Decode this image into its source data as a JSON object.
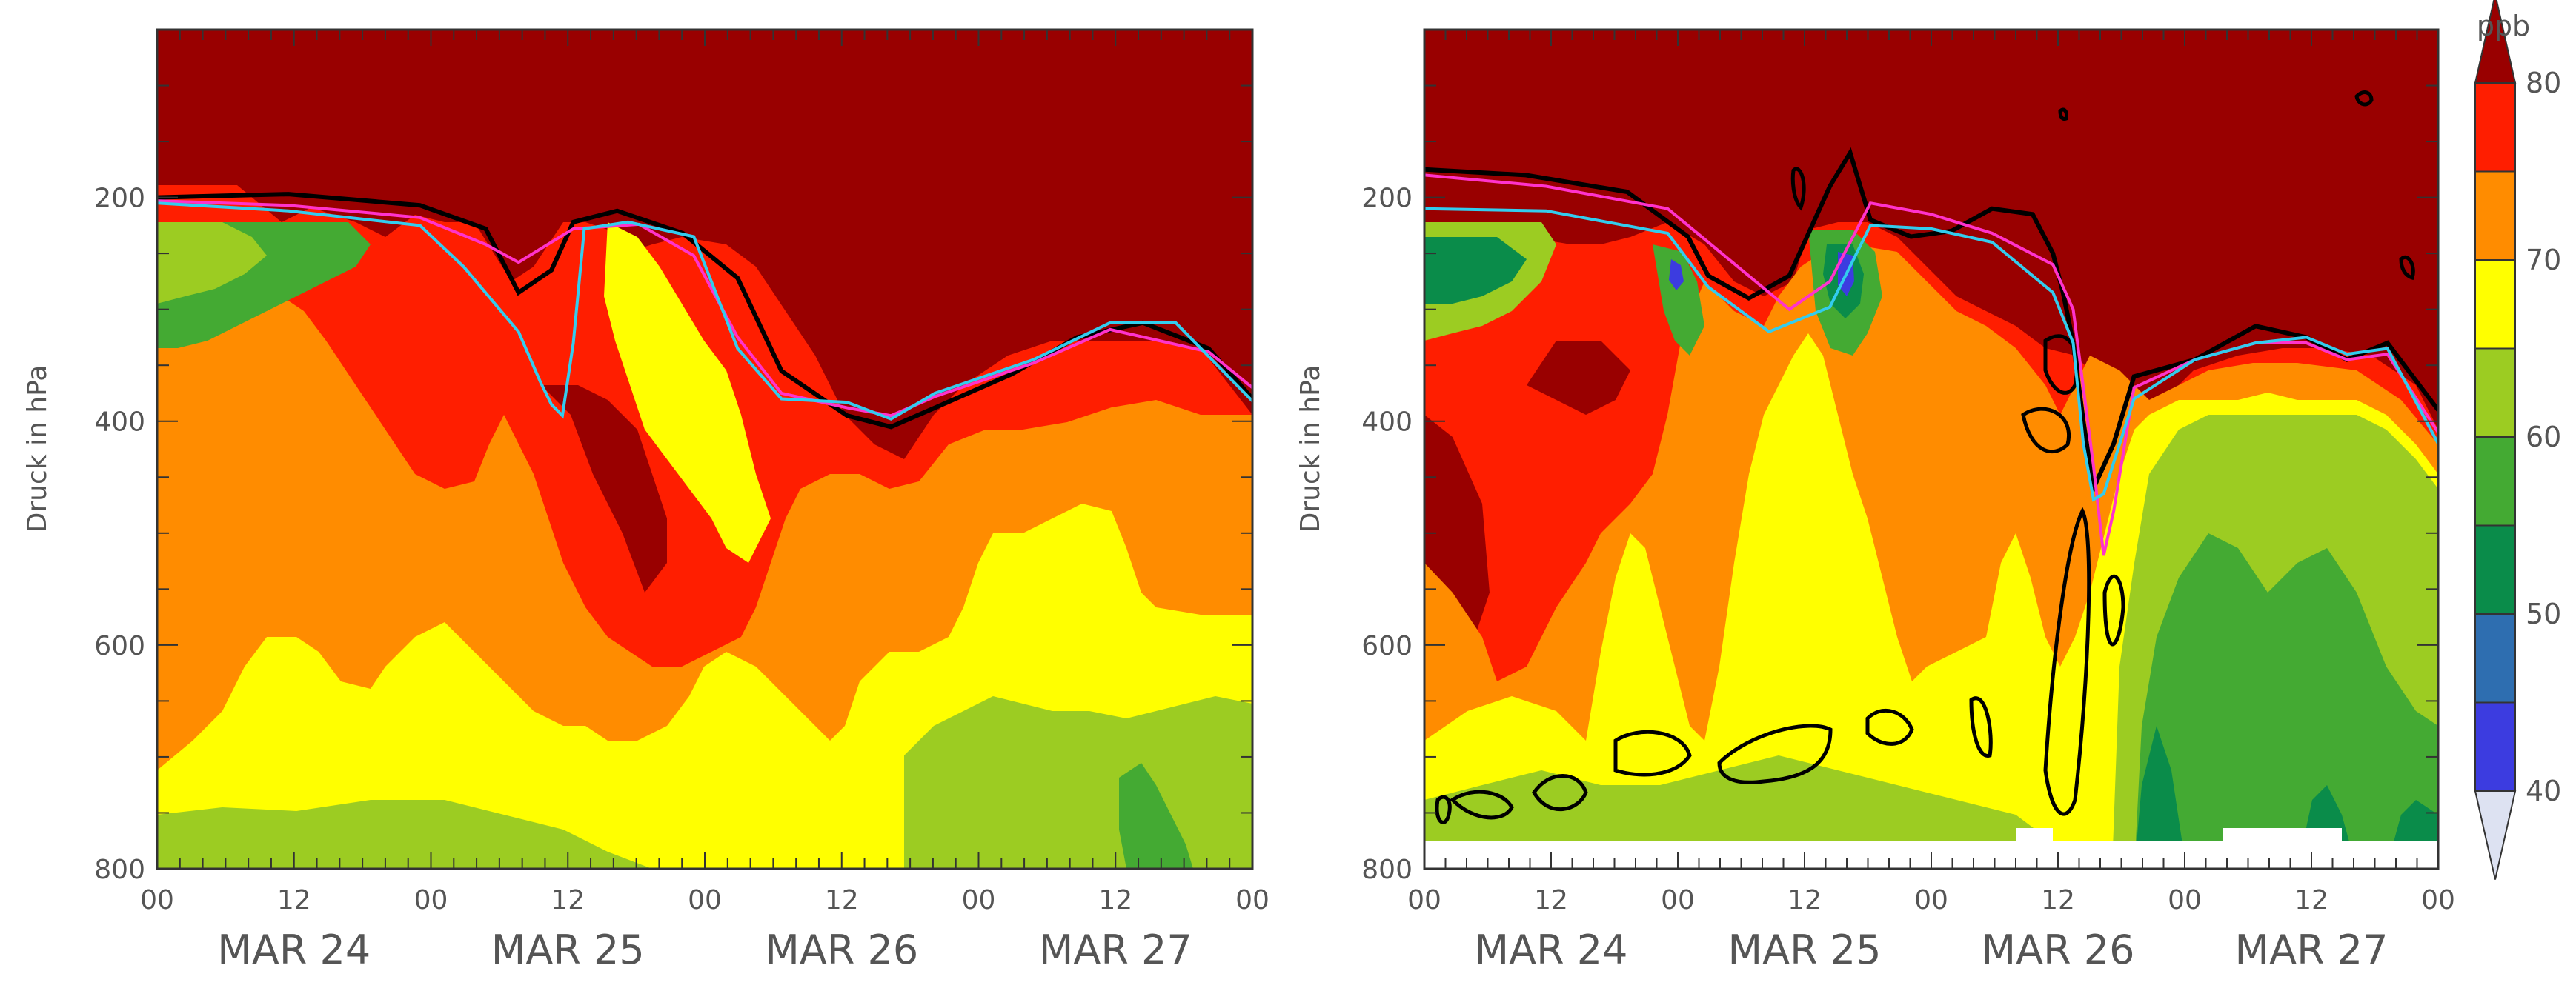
{
  "chart_data": [
    {
      "type": "heatmap",
      "title": "",
      "xlabel": "",
      "ylabel": "Druck in hPa",
      "ylim": [
        800,
        50
      ],
      "y_ticks": [
        "200",
        "400",
        "600",
        "800"
      ],
      "x_ticks": [
        "00",
        "12",
        "00",
        "12",
        "00",
        "12",
        "00",
        "12",
        "00"
      ],
      "x_days": [
        "MAR 24",
        "MAR 25",
        "MAR 26",
        "MAR 27"
      ],
      "tropopause_black": [
        [
          0,
          200
        ],
        [
          12,
          197
        ],
        [
          24,
          207
        ],
        [
          30,
          228
        ],
        [
          33,
          285
        ],
        [
          36,
          265
        ],
        [
          38,
          222
        ],
        [
          42,
          212
        ],
        [
          48,
          232
        ],
        [
          53,
          272
        ],
        [
          57,
          355
        ],
        [
          63,
          395
        ],
        [
          67,
          405
        ],
        [
          71,
          388
        ],
        [
          78,
          358
        ],
        [
          84,
          325
        ],
        [
          90,
          312
        ],
        [
          96,
          335
        ],
        [
          100,
          380
        ]
      ],
      "tropopause_magenta": [
        [
          0,
          203
        ],
        [
          12,
          207
        ],
        [
          24,
          218
        ],
        [
          30,
          242
        ],
        [
          33,
          258
        ],
        [
          38,
          228
        ],
        [
          44,
          224
        ],
        [
          49,
          252
        ],
        [
          53,
          325
        ],
        [
          57,
          375
        ],
        [
          63,
          388
        ],
        [
          67,
          395
        ],
        [
          71,
          378
        ],
        [
          80,
          348
        ],
        [
          87,
          318
        ],
        [
          96,
          338
        ],
        [
          100,
          370
        ]
      ],
      "tropopause_cyan": [
        [
          0,
          205
        ],
        [
          12,
          212
        ],
        [
          24,
          225
        ],
        [
          28,
          262
        ],
        [
          33,
          320
        ],
        [
          35,
          365
        ],
        [
          36,
          385
        ],
        [
          37,
          395
        ],
        [
          38,
          330
        ],
        [
          39,
          228
        ],
        [
          43,
          222
        ],
        [
          49,
          235
        ],
        [
          53,
          335
        ],
        [
          57,
          380
        ],
        [
          63,
          383
        ],
        [
          67,
          398
        ],
        [
          71,
          375
        ],
        [
          80,
          345
        ],
        [
          87,
          312
        ],
        [
          93,
          312
        ],
        [
          100,
          382
        ]
      ]
    },
    {
      "type": "heatmap",
      "title": "",
      "xlabel": "",
      "ylabel": "Druck in hPa",
      "ylim": [
        800,
        50
      ],
      "y_ticks": [
        "200",
        "400",
        "600",
        "800"
      ],
      "x_ticks": [
        "00",
        "12",
        "00",
        "12",
        "00",
        "12",
        "00",
        "12",
        "00"
      ],
      "x_days": [
        "MAR 24",
        "MAR 25",
        "MAR 26",
        "MAR 27"
      ],
      "colorbar": {
        "unit": "ppb",
        "levels": [
          "40",
          "50",
          "60",
          "70",
          "80"
        ],
        "colors": [
          "#dde2f2",
          "#3c3ce0",
          "#2e6eb0",
          "#0a8c4a",
          "#44aa33",
          "#9ccc22",
          "#ffff00",
          "#ff8c00",
          "#ff1e00",
          "#990000"
        ]
      },
      "tropopause_black": [
        [
          0,
          175
        ],
        [
          10,
          180
        ],
        [
          20,
          195
        ],
        [
          26,
          235
        ],
        [
          28,
          270
        ],
        [
          32,
          290
        ],
        [
          36,
          270
        ],
        [
          40,
          190
        ],
        [
          42,
          160
        ],
        [
          44,
          220
        ],
        [
          48,
          235
        ],
        [
          52,
          230
        ],
        [
          56,
          210
        ],
        [
          60,
          215
        ],
        [
          62,
          250
        ],
        [
          63,
          285
        ],
        [
          64,
          330
        ],
        [
          65,
          400
        ],
        [
          66,
          460
        ],
        [
          68,
          420
        ],
        [
          70,
          360
        ],
        [
          76,
          345
        ],
        [
          82,
          315
        ],
        [
          87,
          325
        ],
        [
          91,
          345
        ],
        [
          95,
          330
        ],
        [
          100,
          390
        ]
      ],
      "tropopause_magenta": [
        [
          0,
          180
        ],
        [
          12,
          190
        ],
        [
          24,
          210
        ],
        [
          30,
          255
        ],
        [
          36,
          300
        ],
        [
          40,
          275
        ],
        [
          44,
          205
        ],
        [
          50,
          215
        ],
        [
          56,
          232
        ],
        [
          62,
          260
        ],
        [
          64,
          300
        ],
        [
          65,
          370
        ],
        [
          66,
          440
        ],
        [
          67,
          520
        ],
        [
          68,
          480
        ],
        [
          70,
          370
        ],
        [
          76,
          345
        ],
        [
          82,
          330
        ],
        [
          87,
          330
        ],
        [
          91,
          345
        ],
        [
          95,
          340
        ],
        [
          100,
          410
        ]
      ],
      "tropopause_cyan": [
        [
          0,
          210
        ],
        [
          12,
          212
        ],
        [
          24,
          232
        ],
        [
          28,
          280
        ],
        [
          34,
          320
        ],
        [
          40,
          298
        ],
        [
          44,
          225
        ],
        [
          50,
          228
        ],
        [
          56,
          240
        ],
        [
          62,
          285
        ],
        [
          64,
          330
        ],
        [
          65,
          420
        ],
        [
          66,
          470
        ],
        [
          67,
          465
        ],
        [
          70,
          380
        ],
        [
          76,
          345
        ],
        [
          82,
          330
        ],
        [
          87,
          325
        ],
        [
          91,
          340
        ],
        [
          95,
          335
        ],
        [
          100,
          420
        ]
      ]
    }
  ]
}
